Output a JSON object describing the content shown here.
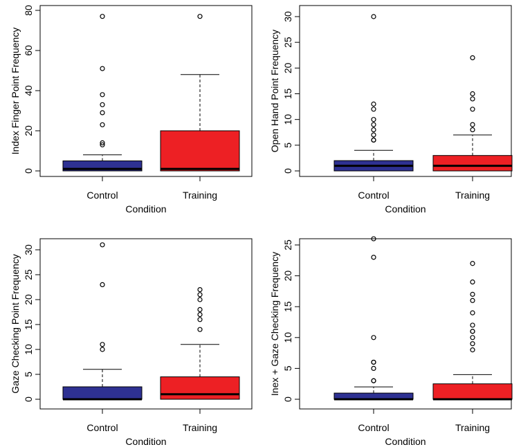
{
  "colors": {
    "control": "#2e3192",
    "training": "#ed2024",
    "median": "#000000"
  },
  "chart_data": [
    {
      "type": "boxplot",
      "xlabel": "Condition",
      "ylabel": "Index Finger Point Frequency",
      "ylim": [
        0,
        80
      ],
      "yticks": [
        0,
        20,
        40,
        60,
        80
      ],
      "categories": [
        "Control",
        "Training"
      ],
      "boxes": [
        {
          "category": "Control",
          "color": "#2e3192",
          "lower_whisker": 0,
          "q1": 0,
          "median": 1,
          "q3": 5,
          "upper_whisker": 8,
          "outliers": [
            13,
            14,
            23,
            29,
            33,
            38,
            51,
            77
          ]
        },
        {
          "category": "Training",
          "color": "#ed2024",
          "lower_whisker": 0,
          "q1": 0,
          "median": 1,
          "q3": 20,
          "upper_whisker": 48,
          "outliers": [
            77
          ]
        }
      ]
    },
    {
      "type": "boxplot",
      "xlabel": "Condition",
      "ylabel": "Open Hand Point Frequency",
      "ylim": [
        0,
        30
      ],
      "yticks": [
        0,
        5,
        10,
        15,
        20,
        25,
        30
      ],
      "categories": [
        "Control",
        "Training"
      ],
      "boxes": [
        {
          "category": "Control",
          "color": "#2e3192",
          "lower_whisker": 0,
          "q1": 0,
          "median": 1,
          "q3": 2,
          "upper_whisker": 4,
          "outliers": [
            6,
            6,
            7,
            8,
            9,
            10,
            12,
            13,
            30
          ]
        },
        {
          "category": "Training",
          "color": "#ed2024",
          "lower_whisker": 0,
          "q1": 0,
          "median": 1,
          "q3": 3,
          "upper_whisker": 7,
          "outliers": [
            8,
            9,
            12,
            14,
            15,
            22
          ]
        }
      ]
    },
    {
      "type": "boxplot",
      "xlabel": "Condition",
      "ylabel": "Gaze Checking Point Frequency",
      "ylim": [
        0,
        30
      ],
      "yticks": [
        0,
        5,
        10,
        15,
        20,
        25,
        30
      ],
      "categories": [
        "Control",
        "Training"
      ],
      "boxes": [
        {
          "category": "Control",
          "color": "#2e3192",
          "lower_whisker": 0,
          "q1": 0,
          "median": 0,
          "q3": 2.5,
          "upper_whisker": 6,
          "outliers": [
            10,
            11,
            23,
            31
          ]
        },
        {
          "category": "Training",
          "color": "#ed2024",
          "lower_whisker": 0,
          "q1": 0,
          "median": 1,
          "q3": 4.5,
          "upper_whisker": 11,
          "outliers": [
            14,
            16,
            17,
            18,
            20,
            21,
            22
          ]
        }
      ]
    },
    {
      "type": "boxplot",
      "xlabel": "Condition",
      "ylabel": "Inex + Gaze Checking Frequency",
      "ylim": [
        0,
        25
      ],
      "yticks": [
        0,
        5,
        10,
        15,
        20,
        25
      ],
      "categories": [
        "Control",
        "Training"
      ],
      "boxes": [
        {
          "category": "Control",
          "color": "#2e3192",
          "lower_whisker": 0,
          "q1": 0,
          "median": 0,
          "q3": 1,
          "upper_whisker": 2,
          "outliers": [
            3,
            3,
            5,
            6,
            6,
            10,
            23,
            26
          ]
        },
        {
          "category": "Training",
          "color": "#ed2024",
          "lower_whisker": 0,
          "q1": 0,
          "median": 0,
          "q3": 2.5,
          "upper_whisker": 4,
          "outliers": [
            8,
            9,
            10,
            11,
            11,
            12,
            14,
            16,
            17,
            19,
            22
          ]
        }
      ]
    }
  ]
}
